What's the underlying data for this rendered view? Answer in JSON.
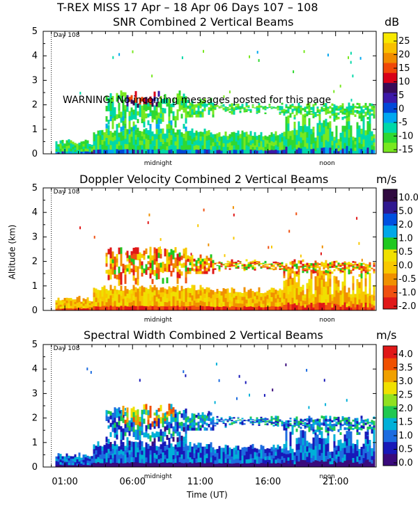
{
  "header": {
    "title": "T-REX MISS   17 Apr – 18 Apr 06 Days 107 – 108"
  },
  "warning": "WARNING: No incoming messages posted for this page",
  "axes": {
    "ylabel": "Altitude (km)",
    "xlabel": "Time (UT)",
    "xticks": [
      "01:00",
      "06:00",
      "11:00",
      "16:00",
      "21:00"
    ],
    "day_marker": "Day 108",
    "midnight_label": "midnight",
    "noon_label": "noon"
  },
  "colors": {
    "snr": [
      "#78e820",
      "#30d830",
      "#00d8a8",
      "#00a8f0",
      "#0048d8",
      "#3c18a8",
      "#380a58",
      "#d80018",
      "#f04808",
      "#f08c00",
      "#f8c000",
      "#f8e800"
    ],
    "doppler": [
      "#e01818",
      "#f05010",
      "#f09000",
      "#f8c800",
      "#f0e000",
      "#20c820",
      "#00a8e8",
      "#0050e0",
      "#301890",
      "#300a40"
    ],
    "width": [
      "#3a0a7c",
      "#1818b8",
      "#1c6ce0",
      "#00b0d8",
      "#20c850",
      "#90e020",
      "#f0e000",
      "#f0a000",
      "#f05000",
      "#e01818"
    ]
  },
  "chart_data": [
    {
      "type": "heatmap",
      "title": "SNR Combined 2 Vertical Beams",
      "units": "dB",
      "colorbar_ticks": [
        "25",
        "20",
        "15",
        "10",
        "5",
        "0",
        "-5",
        "-10",
        "-15"
      ],
      "colorbar_range": [
        -17,
        29
      ],
      "ylim": [
        0,
        5
      ],
      "yticks": [
        "0",
        "1",
        "2",
        "3",
        "4",
        "5"
      ],
      "xlim_hours": [
        -0.6,
        24
      ]
    },
    {
      "type": "heatmap",
      "title": "Doppler Velocity Combined 2 Vertical Beams",
      "units": "m/s",
      "colorbar_ticks": [
        "10.0",
        "5.0",
        "2.0",
        "1.0",
        "0.5",
        "0.0",
        "-0.5",
        "-1.0",
        "-2.0"
      ],
      "ylim": [
        0,
        5
      ],
      "yticks": [
        "0",
        "1",
        "2",
        "3",
        "4",
        "5"
      ],
      "xlim_hours": [
        -0.6,
        24
      ]
    },
    {
      "type": "heatmap",
      "title": "Spectral Width Combined 2 Vertical Beams",
      "units": "m/s",
      "colorbar_ticks": [
        "4.0",
        "3.5",
        "3.0",
        "2.5",
        "2.0",
        "1.5",
        "1.0",
        "0.5",
        "0.0"
      ],
      "ylim": [
        0,
        5
      ],
      "yticks": [
        "0",
        "1",
        "2",
        "3",
        "4",
        "5"
      ],
      "xlim_hours": [
        -0.6,
        24
      ]
    }
  ]
}
